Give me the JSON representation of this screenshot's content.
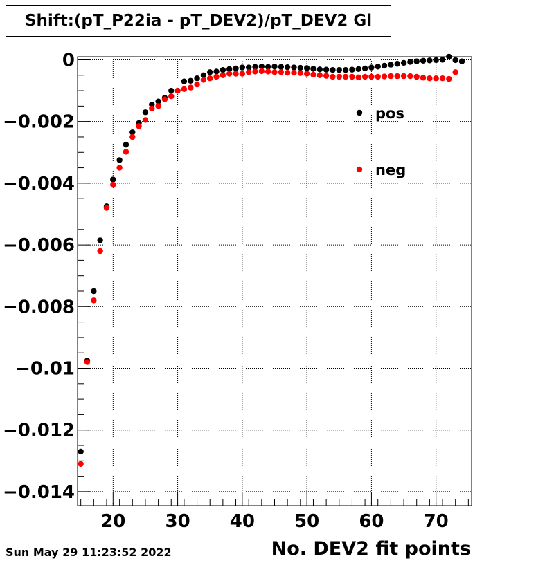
{
  "title": "Shift:(pT_P22ia - pT_DEV2)/pT_DEV2 Gl",
  "timestamp": "Sun May 29 11:23:52 2022",
  "chart_data": {
    "type": "scatter",
    "title": "Shift:(pT_P22ia - pT_DEV2)/pT_DEV2 Gl",
    "xlabel": "No. DEV2 fit points",
    "ylabel": "",
    "xlim": [
      14.5,
      75.5
    ],
    "ylim": [
      -0.01445,
      0.0001
    ],
    "x_ticks": [
      20,
      30,
      40,
      50,
      60,
      70
    ],
    "x_tick_labels": [
      "20",
      "30",
      "40",
      "50",
      "60",
      "70"
    ],
    "y_ticks": [
      0,
      -0.002,
      -0.004,
      -0.006,
      -0.008,
      -0.01,
      -0.012,
      -0.014
    ],
    "y_tick_labels": [
      "0",
      "−0.002",
      "−0.004",
      "−0.006",
      "−0.008",
      "−0.01",
      "−0.012",
      "−0.014"
    ],
    "grid": true,
    "legend_placement": "top-right",
    "series": [
      {
        "name": "pos",
        "color": "#000000",
        "x": [
          15,
          16,
          17,
          18,
          19,
          20,
          21,
          22,
          23,
          24,
          25,
          26,
          27,
          28,
          29,
          30,
          31,
          32,
          33,
          34,
          35,
          36,
          37,
          38,
          39,
          40,
          41,
          42,
          43,
          44,
          45,
          46,
          47,
          48,
          49,
          50,
          51,
          52,
          53,
          54,
          55,
          56,
          57,
          58,
          59,
          60,
          61,
          62,
          63,
          64,
          65,
          66,
          67,
          68,
          69,
          70,
          71,
          72,
          73,
          74
        ],
        "y": [
          -0.0127,
          -0.00975,
          -0.0075,
          -0.00585,
          -0.00475,
          -0.00388,
          -0.00325,
          -0.00275,
          -0.00235,
          -0.00205,
          -0.0017,
          -0.00145,
          -0.00135,
          -0.00123,
          -0.001,
          -0.001,
          -0.0007,
          -0.00068,
          -0.0006,
          -0.0005,
          -0.0004,
          -0.00038,
          -0.00033,
          -0.0003,
          -0.00028,
          -0.00025,
          -0.00025,
          -0.00023,
          -0.00022,
          -0.00023,
          -0.00022,
          -0.00023,
          -0.00024,
          -0.00025,
          -0.00026,
          -0.00027,
          -0.00029,
          -0.00031,
          -0.00032,
          -0.00033,
          -0.00033,
          -0.00033,
          -0.00032,
          -0.0003,
          -0.00028,
          -0.00025,
          -0.00022,
          -0.00019,
          -0.00016,
          -0.00013,
          -0.0001,
          -7e-05,
          -5e-05,
          -3e-05,
          -2e-05,
          -1e-05,
          0.0,
          0.0001,
          -1e-05,
          -5e-05
        ]
      },
      {
        "name": "neg",
        "color": "#ff0000",
        "x": [
          15,
          16,
          17,
          18,
          19,
          20,
          21,
          22,
          23,
          24,
          25,
          26,
          27,
          28,
          29,
          30,
          31,
          32,
          33,
          34,
          35,
          36,
          37,
          38,
          39,
          40,
          41,
          42,
          43,
          44,
          45,
          46,
          47,
          48,
          49,
          50,
          51,
          52,
          53,
          54,
          55,
          56,
          57,
          58,
          59,
          60,
          61,
          62,
          63,
          64,
          65,
          66,
          67,
          68,
          69,
          70,
          71,
          72,
          73
        ],
        "y": [
          -0.0131,
          -0.0098,
          -0.0078,
          -0.0062,
          -0.0048,
          -0.00405,
          -0.0035,
          -0.00298,
          -0.0025,
          -0.00215,
          -0.00195,
          -0.00158,
          -0.0015,
          -0.00128,
          -0.00118,
          -0.001,
          -0.00095,
          -0.0009,
          -0.0008,
          -0.00065,
          -0.0006,
          -0.00055,
          -0.0005,
          -0.00045,
          -0.00045,
          -0.00045,
          -0.0004,
          -0.00038,
          -0.00037,
          -0.00038,
          -0.0004,
          -0.0004,
          -0.00042,
          -0.00042,
          -0.00043,
          -0.00045,
          -0.00048,
          -0.0005,
          -0.00052,
          -0.00055,
          -0.00055,
          -0.00055,
          -0.00055,
          -0.00057,
          -0.00055,
          -0.00055,
          -0.00055,
          -0.00054,
          -0.00053,
          -0.00053,
          -0.00053,
          -0.00053,
          -0.00055,
          -0.00058,
          -0.0006,
          -0.0006,
          -0.0006,
          -0.00062,
          -0.0004
        ]
      }
    ]
  }
}
